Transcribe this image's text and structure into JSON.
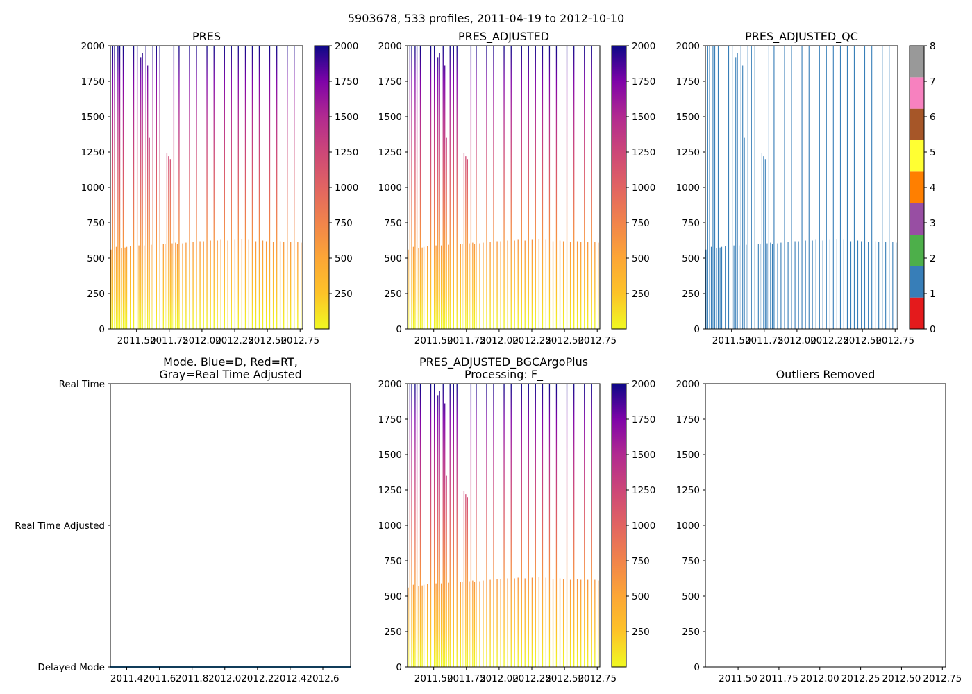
{
  "suptitle": "5903678, 533 profiles, 2011-04-19 to 2012-10-10",
  "chart_data": [
    {
      "id": "pres",
      "type": "heatmap",
      "title": [
        "PRES"
      ],
      "xlim": [
        2011.3,
        2012.77
      ],
      "ylim": [
        2000,
        0
      ],
      "xticks": [
        2011.5,
        2011.75,
        2012.0,
        2012.25,
        2012.5,
        2012.75
      ],
      "xtick_labels": [
        "2011.50",
        "2011.75",
        "2012.00",
        "2012.25",
        "2012.50",
        "2012.75"
      ],
      "yticks": [
        0,
        250,
        500,
        750,
        1000,
        1250,
        1500,
        1750,
        2000
      ],
      "ytick_labels": [
        "0",
        "250",
        "500",
        "750",
        "1000",
        "1250",
        "1500",
        "1750",
        "2000"
      ],
      "colormap": "plasma_r",
      "colorbar": {
        "range": [
          0,
          2000
        ],
        "ticks": [
          250,
          500,
          750,
          1000,
          1250,
          1500,
          1750,
          2000
        ],
        "tick_labels": [
          "250",
          "500",
          "750",
          "1000",
          "1250",
          "1500",
          "1750",
          "2000"
        ]
      }
    },
    {
      "id": "pres_adjusted",
      "type": "heatmap",
      "title": [
        "PRES_ADJUSTED"
      ],
      "xlim": [
        2011.3,
        2012.77
      ],
      "ylim": [
        2000,
        0
      ],
      "xticks": [
        2011.5,
        2011.75,
        2012.0,
        2012.25,
        2012.5,
        2012.75
      ],
      "xtick_labels": [
        "2011.50",
        "2011.75",
        "2012.00",
        "2012.25",
        "2012.50",
        "2012.75"
      ],
      "yticks": [
        0,
        250,
        500,
        750,
        1000,
        1250,
        1500,
        1750,
        2000
      ],
      "ytick_labels": [
        "0",
        "250",
        "500",
        "750",
        "1000",
        "1250",
        "1500",
        "1750",
        "2000"
      ],
      "colormap": "plasma_r",
      "colorbar": {
        "range": [
          0,
          2000
        ],
        "ticks": [
          250,
          500,
          750,
          1000,
          1250,
          1500,
          1750,
          2000
        ],
        "tick_labels": [
          "250",
          "500",
          "750",
          "1000",
          "1250",
          "1500",
          "1750",
          "2000"
        ]
      }
    },
    {
      "id": "pres_adjusted_qc",
      "type": "heatmap",
      "title": [
        "PRES_ADJUSTED_QC"
      ],
      "xlim": [
        2011.3,
        2012.77
      ],
      "ylim": [
        2000,
        0
      ],
      "xticks": [
        2011.5,
        2011.75,
        2012.0,
        2012.25,
        2012.5,
        2012.75
      ],
      "xtick_labels": [
        "2011.50",
        "2011.75",
        "2012.00",
        "2012.25",
        "2012.50",
        "2012.75"
      ],
      "yticks": [
        0,
        250,
        500,
        750,
        1000,
        1250,
        1500,
        1750,
        2000
      ],
      "ytick_labels": [
        "0",
        "250",
        "500",
        "750",
        "1000",
        "1250",
        "1500",
        "1750",
        "2000"
      ],
      "qc_value": 1,
      "colorbar": {
        "range": [
          0,
          8
        ],
        "ticks": [
          0,
          1,
          2,
          3,
          4,
          5,
          6,
          7,
          8
        ],
        "tick_labels": [
          "0",
          "1",
          "2",
          "3",
          "4",
          "5",
          "6",
          "7",
          "8"
        ],
        "colors": [
          "#e41a1c",
          "#377eb8",
          "#4daf4a",
          "#984ea3",
          "#ff7f00",
          "#ffff33",
          "#a65628",
          "#f781bf",
          "#999999"
        ]
      }
    },
    {
      "id": "mode",
      "type": "scatter",
      "title": [
        "Mode. Blue=D, Red=RT,",
        "Gray=Real Time Adjusted"
      ],
      "xlim": [
        2011.3,
        2012.77
      ],
      "ylim": [
        0,
        1
      ],
      "xticks": [
        2011.4,
        2011.6,
        2011.8,
        2012.0,
        2012.2,
        2012.4,
        2012.6
      ],
      "xtick_labels": [
        "2011.4",
        "2011.6",
        "2011.8",
        "2012.0",
        "2012.2",
        "2012.4",
        "2012.6"
      ],
      "yticks": [
        1,
        0.5,
        0
      ],
      "ytick_labels": [
        "Delayed Mode",
        "Real Time Adjusted",
        "Real Time"
      ],
      "series_color": "#1f77b4",
      "mode_value": 1
    },
    {
      "id": "pres_adjusted_bgc",
      "type": "heatmap",
      "title": [
        "PRES_ADJUSTED_BGCArgoPlus",
        "Processing: F_"
      ],
      "xlim": [
        2011.3,
        2012.77
      ],
      "ylim": [
        2000,
        0
      ],
      "xticks": [
        2011.5,
        2011.75,
        2012.0,
        2012.25,
        2012.5,
        2012.75
      ],
      "xtick_labels": [
        "2011.50",
        "2011.75",
        "2012.00",
        "2012.25",
        "2012.50",
        "2012.75"
      ],
      "yticks": [
        0,
        250,
        500,
        750,
        1000,
        1250,
        1500,
        1750,
        2000
      ],
      "ytick_labels": [
        "0",
        "250",
        "500",
        "750",
        "1000",
        "1250",
        "1500",
        "1750",
        "2000"
      ],
      "colormap": "plasma_r",
      "colorbar": {
        "range": [
          0,
          2000
        ],
        "ticks": [
          250,
          500,
          750,
          1000,
          1250,
          1500,
          1750,
          2000
        ],
        "tick_labels": [
          "250",
          "500",
          "750",
          "1000",
          "1250",
          "1500",
          "1750",
          "2000"
        ]
      }
    },
    {
      "id": "outliers",
      "type": "scatter",
      "title": [
        "Outliers Removed"
      ],
      "xlim": [
        2011.3,
        2012.77
      ],
      "ylim": [
        2000,
        0
      ],
      "xticks": [
        2011.5,
        2011.75,
        2012.0,
        2012.25,
        2012.5,
        2012.75
      ],
      "xtick_labels": [
        "2011.50",
        "2011.75",
        "2012.00",
        "2012.25",
        "2012.50",
        "2012.75"
      ],
      "yticks": [
        0,
        250,
        500,
        750,
        1000,
        1250,
        1500,
        1750,
        2000
      ],
      "ytick_labels": [
        "0",
        "250",
        "500",
        "750",
        "1000",
        "1250",
        "1500",
        "1750",
        "2000"
      ]
    }
  ],
  "profiles": {
    "times": [
      2011.305,
      2011.318,
      2011.332,
      2011.345,
      2011.358,
      2011.372,
      2011.385,
      2011.398,
      2011.412,
      2011.425,
      2011.452,
      2011.478,
      2011.505,
      2011.518,
      2011.532,
      2011.545,
      2011.558,
      2011.572,
      2011.585,
      2011.598,
      2011.612,
      2011.625,
      2011.652,
      2011.678,
      2011.705,
      2011.718,
      2011.732,
      2011.745,
      2011.758,
      2011.772,
      2011.785,
      2011.798,
      2011.812,
      2011.825,
      2011.852,
      2011.878,
      2011.905,
      2011.932,
      2011.958,
      2011.985,
      2012.012,
      2012.038,
      2012.065,
      2012.092,
      2012.118,
      2012.145,
      2012.172,
      2012.198,
      2012.225,
      2012.252,
      2012.278,
      2012.305,
      2012.332,
      2012.358,
      2012.385,
      2012.412,
      2012.438,
      2012.465,
      2012.492,
      2012.518,
      2012.545,
      2012.572,
      2012.598,
      2012.625,
      2012.652,
      2012.678,
      2012.705,
      2012.732,
      2012.758
    ],
    "max_pressure": [
      560,
      2000,
      2000,
      580,
      2000,
      2000,
      570,
      2000,
      575,
      580,
      585,
      2000,
      2000,
      590,
      1920,
      1950,
      590,
      2000,
      1860,
      1350,
      595,
      2000,
      2000,
      2000,
      600,
      600,
      1240,
      1220,
      1200,
      605,
      2000,
      610,
      600,
      2000,
      605,
      610,
      2000,
      615,
      2000,
      620,
      620,
      2000,
      625,
      2000,
      625,
      630,
      2000,
      625,
      2000,
      630,
      2000,
      635,
      2000,
      630,
      2000,
      620,
      2000,
      625,
      620,
      2000,
      615,
      2000,
      620,
      615,
      2000,
      615,
      2000,
      615,
      610
    ]
  }
}
